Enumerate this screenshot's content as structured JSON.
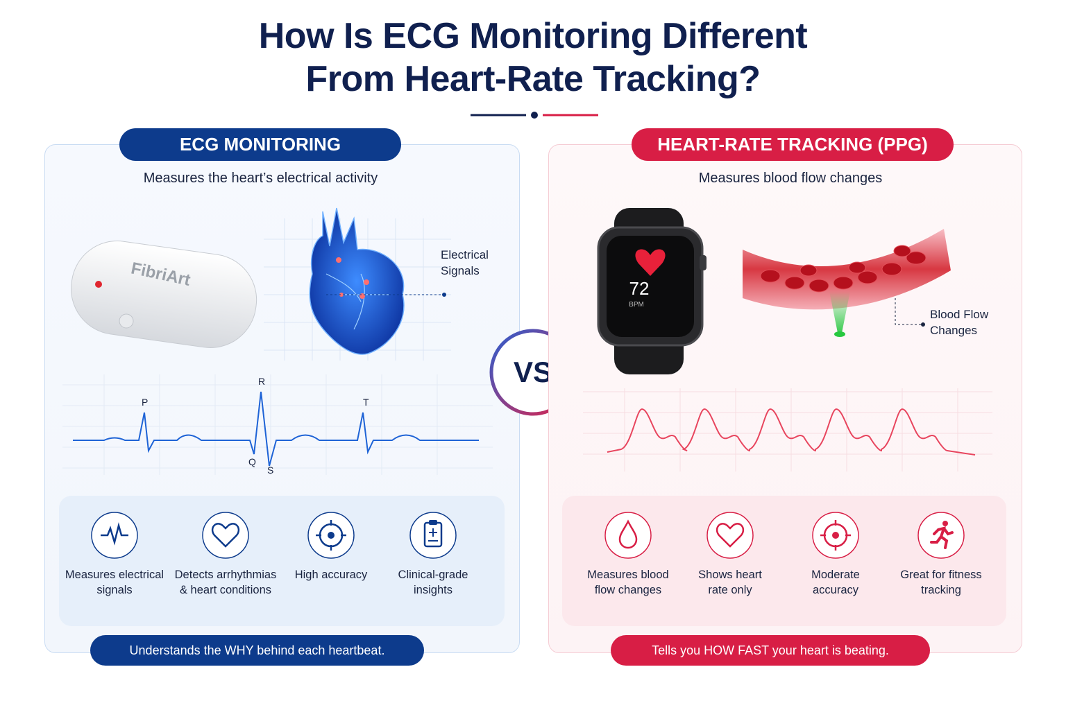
{
  "title": [
    "How Is ECG Monitoring Different",
    "From Heart-Rate Tracking?"
  ],
  "vs": "VS",
  "left": {
    "badge": "ECG MONITORING",
    "subtitle": "Measures the heart’s electrical activity",
    "device_brand": "FibriArt",
    "annotation": [
      "Electrical",
      "Signals"
    ],
    "wave_labels": {
      "p": "P",
      "r": "R",
      "t": "T",
      "q": "Q",
      "s": "S"
    },
    "features": [
      {
        "label": [
          "Measures electrical",
          "signals"
        ]
      },
      {
        "label": [
          "Detects arrhythmias",
          "& heart conditions"
        ]
      },
      {
        "label": [
          "High accuracy"
        ]
      },
      {
        "label": [
          "Clinical-grade",
          "insights"
        ]
      }
    ],
    "footer": "Understands the WHY behind each heartbeat."
  },
  "right": {
    "badge": "HEART-RATE TRACKING (PPG)",
    "subtitle": "Measures blood flow changes",
    "watch_value": "72",
    "watch_unit": "BPM",
    "annotation": [
      "Blood Flow",
      "Changes"
    ],
    "features": [
      {
        "label": [
          "Measures blood",
          "flow changes"
        ]
      },
      {
        "label": [
          "Shows heart",
          "rate only"
        ]
      },
      {
        "label": [
          "Moderate",
          "accuracy"
        ]
      },
      {
        "label": [
          "Great for fitness",
          "tracking"
        ]
      }
    ],
    "footer": "Tells you HOW FAST your heart is beating."
  }
}
